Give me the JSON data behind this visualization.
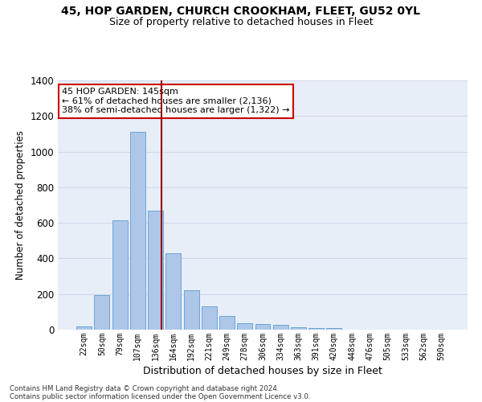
{
  "title1": "45, HOP GARDEN, CHURCH CROOKHAM, FLEET, GU52 0YL",
  "title2": "Size of property relative to detached houses in Fleet",
  "xlabel": "Distribution of detached houses by size in Fleet",
  "ylabel": "Number of detached properties",
  "categories": [
    "22sqm",
    "50sqm",
    "79sqm",
    "107sqm",
    "136sqm",
    "164sqm",
    "192sqm",
    "221sqm",
    "249sqm",
    "278sqm",
    "306sqm",
    "334sqm",
    "363sqm",
    "391sqm",
    "420sqm",
    "448sqm",
    "476sqm",
    "505sqm",
    "533sqm",
    "562sqm",
    "590sqm"
  ],
  "values": [
    20,
    195,
    615,
    1110,
    670,
    430,
    220,
    130,
    75,
    35,
    30,
    25,
    15,
    10,
    10,
    0,
    0,
    0,
    0,
    0,
    0
  ],
  "bar_color": "#aec6e8",
  "bar_edge_color": "#5a9fd4",
  "grid_color": "#d0d8e8",
  "background_color": "#e8eef8",
  "annotation_text1": "45 HOP GARDEN: 145sqm",
  "annotation_text2": "← 61% of detached houses are smaller (2,136)",
  "annotation_text3": "38% of semi-detached houses are larger (1,322) →",
  "annotation_box_color": "#ffffff",
  "annotation_border_color": "#cc0000",
  "footer1": "Contains HM Land Registry data © Crown copyright and database right 2024.",
  "footer2": "Contains public sector information licensed under the Open Government Licence v3.0.",
  "ylim": [
    0,
    1400
  ],
  "yticks": [
    0,
    200,
    400,
    600,
    800,
    1000,
    1200,
    1400
  ],
  "red_line_index": 4.32
}
